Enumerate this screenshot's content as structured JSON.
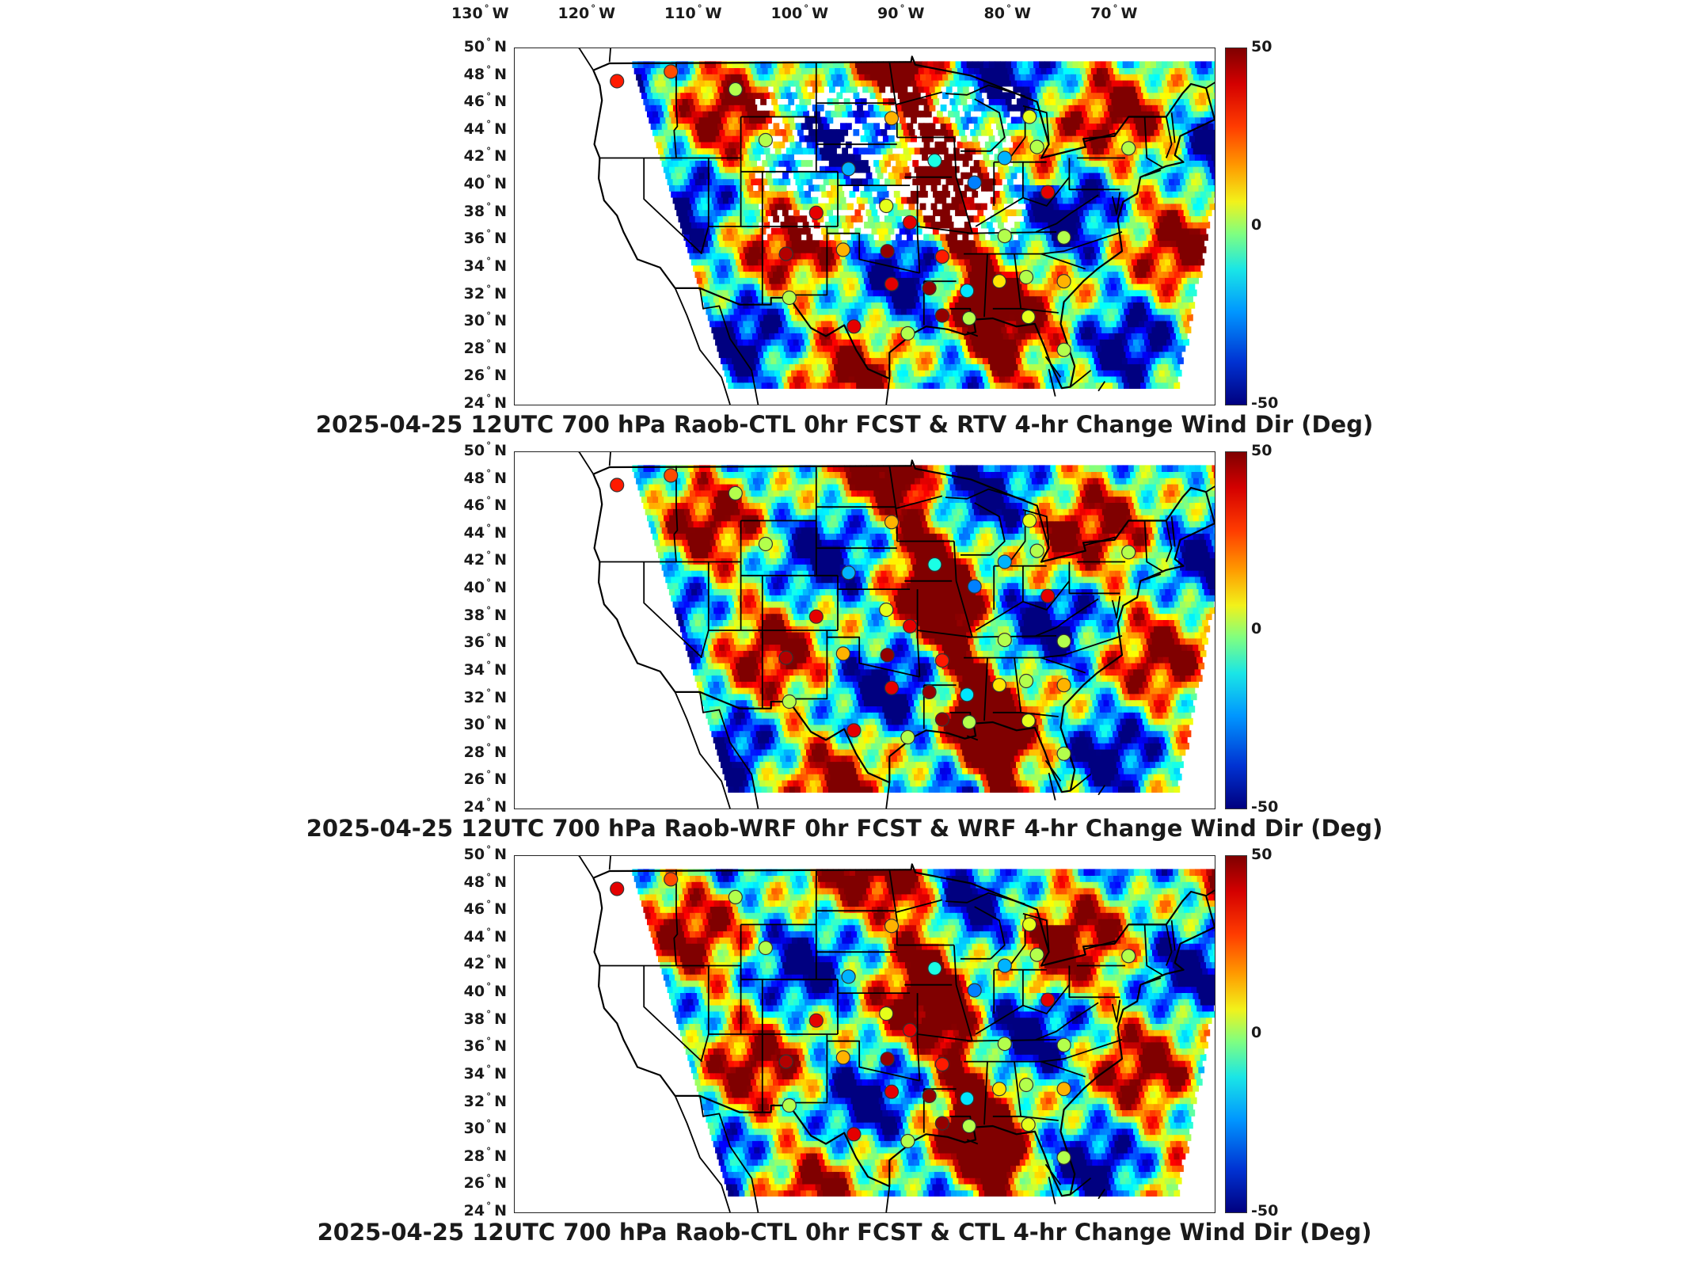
{
  "longitude_labels": [
    {
      "deg": "130",
      "hem": "W"
    },
    {
      "deg": "120",
      "hem": "W"
    },
    {
      "deg": "110",
      "hem": "W"
    },
    {
      "deg": "100",
      "hem": "W"
    },
    {
      "deg": "90",
      "hem": "W"
    },
    {
      "deg": "80",
      "hem": "W"
    },
    {
      "deg": "70",
      "hem": "W"
    }
  ],
  "latitude_labels": [
    {
      "deg": "50",
      "hem": "N"
    },
    {
      "deg": "48",
      "hem": "N"
    },
    {
      "deg": "46",
      "hem": "N"
    },
    {
      "deg": "44",
      "hem": "N"
    },
    {
      "deg": "42",
      "hem": "N"
    },
    {
      "deg": "40",
      "hem": "N"
    },
    {
      "deg": "38",
      "hem": "N"
    },
    {
      "deg": "36",
      "hem": "N"
    },
    {
      "deg": "34",
      "hem": "N"
    },
    {
      "deg": "32",
      "hem": "N"
    },
    {
      "deg": "30",
      "hem": "N"
    },
    {
      "deg": "28",
      "hem": "N"
    },
    {
      "deg": "26",
      "hem": "N"
    },
    {
      "deg": "24",
      "hem": "N"
    }
  ],
  "degree_symbol": "°",
  "colorbar": {
    "max": "50",
    "mid": "0",
    "min": "-50",
    "colormap": "jet",
    "colors": [
      "#7f0000",
      "#ff3c00",
      "#f2f21a",
      "#80ff80",
      "#1ae6e6",
      "#0032d2",
      "#00007f"
    ]
  },
  "panels": [
    {
      "title": "2025-04-25 12UTC 700 hPa Raob-CTL 0hr FCST & RTV 4-hr Change Wind Dir (Deg)"
    },
    {
      "title": "2025-04-25 12UTC 700 hPa Raob-WRF 0hr FCST & WRF 4-hr Change Wind Dir (Deg)"
    },
    {
      "title": "2025-04-25 12UTC 700 hPa Raob-CTL 0hr FCST & CTL 4-hr Change Wind Dir (Deg)"
    }
  ],
  "map_extent": {
    "lon": [
      -132,
      -67
    ],
    "lat": [
      24,
      50
    ]
  },
  "raob_stations": [
    {
      "lon": -122.5,
      "lat": 47.6,
      "p": [
        35,
        35,
        40
      ]
    },
    {
      "lon": -117.5,
      "lat": 48.3,
      "p": [
        30,
        30,
        30
      ]
    },
    {
      "lon": -111.5,
      "lat": 47.0,
      "p": [
        5,
        5,
        5
      ]
    },
    {
      "lon": -108.7,
      "lat": 43.3,
      "p": [
        5,
        5,
        5
      ]
    },
    {
      "lon": -101.0,
      "lat": 41.2,
      "p": [
        -20,
        -20,
        -20
      ]
    },
    {
      "lon": -97.0,
      "lat": 44.9,
      "p": [
        20,
        20,
        20
      ]
    },
    {
      "lon": -93.0,
      "lat": 41.8,
      "p": [
        -10,
        -10,
        -10
      ]
    },
    {
      "lon": -89.3,
      "lat": 40.2,
      "p": [
        -25,
        -25,
        -25
      ]
    },
    {
      "lon": -84.2,
      "lat": 45.0,
      "p": [
        10,
        10,
        10
      ]
    },
    {
      "lon": -83.5,
      "lat": 42.8,
      "p": [
        5,
        5,
        5
      ]
    },
    {
      "lon": -75.0,
      "lat": 42.7,
      "p": [
        5,
        5,
        5
      ]
    },
    {
      "lon": -82.5,
      "lat": 39.5,
      "p": [
        40,
        40,
        40
      ]
    },
    {
      "lon": -97.5,
      "lat": 38.5,
      "p": [
        10,
        10,
        10
      ]
    },
    {
      "lon": -104.0,
      "lat": 38.0,
      "p": [
        40,
        40,
        40
      ]
    },
    {
      "lon": -95.3,
      "lat": 37.3,
      "p": [
        40,
        40,
        40
      ]
    },
    {
      "lon": -101.5,
      "lat": 35.3,
      "p": [
        20,
        20,
        20
      ]
    },
    {
      "lon": -106.8,
      "lat": 35.0,
      "p": [
        45,
        45,
        45
      ]
    },
    {
      "lon": -97.4,
      "lat": 35.2,
      "p": [
        48,
        48,
        48
      ]
    },
    {
      "lon": -92.3,
      "lat": 34.8,
      "p": [
        35,
        35,
        35
      ]
    },
    {
      "lon": -86.5,
      "lat": 36.3,
      "p": [
        5,
        5,
        5
      ]
    },
    {
      "lon": -81.0,
      "lat": 36.2,
      "p": [
        5,
        5,
        5
      ]
    },
    {
      "lon": -87.0,
      "lat": 33.0,
      "p": [
        15,
        15,
        15
      ]
    },
    {
      "lon": -84.5,
      "lat": 33.3,
      "p": [
        5,
        5,
        5
      ]
    },
    {
      "lon": -81.0,
      "lat": 33.0,
      "p": [
        20,
        20,
        20
      ]
    },
    {
      "lon": -97.0,
      "lat": 32.8,
      "p": [
        40,
        40,
        40
      ]
    },
    {
      "lon": -93.5,
      "lat": 32.5,
      "p": [
        48,
        48,
        48
      ]
    },
    {
      "lon": -90.0,
      "lat": 32.3,
      "p": [
        -15,
        -15,
        -15
      ]
    },
    {
      "lon": -92.3,
      "lat": 30.5,
      "p": [
        48,
        48,
        48
      ]
    },
    {
      "lon": -89.8,
      "lat": 30.3,
      "p": [
        5,
        5,
        5
      ]
    },
    {
      "lon": -84.3,
      "lat": 30.4,
      "p": [
        10,
        10,
        10
      ]
    },
    {
      "lon": -81.0,
      "lat": 28.0,
      "p": [
        5,
        5,
        5
      ]
    },
    {
      "lon": -95.5,
      "lat": 29.2,
      "p": [
        5,
        5,
        5
      ]
    },
    {
      "lon": -100.5,
      "lat": 29.7,
      "p": [
        40,
        40,
        40
      ]
    },
    {
      "lon": -106.5,
      "lat": 31.8,
      "p": [
        5,
        5,
        5
      ]
    },
    {
      "lon": -86.5,
      "lat": 42.0,
      "p": [
        -20,
        -20,
        -20
      ]
    }
  ]
}
